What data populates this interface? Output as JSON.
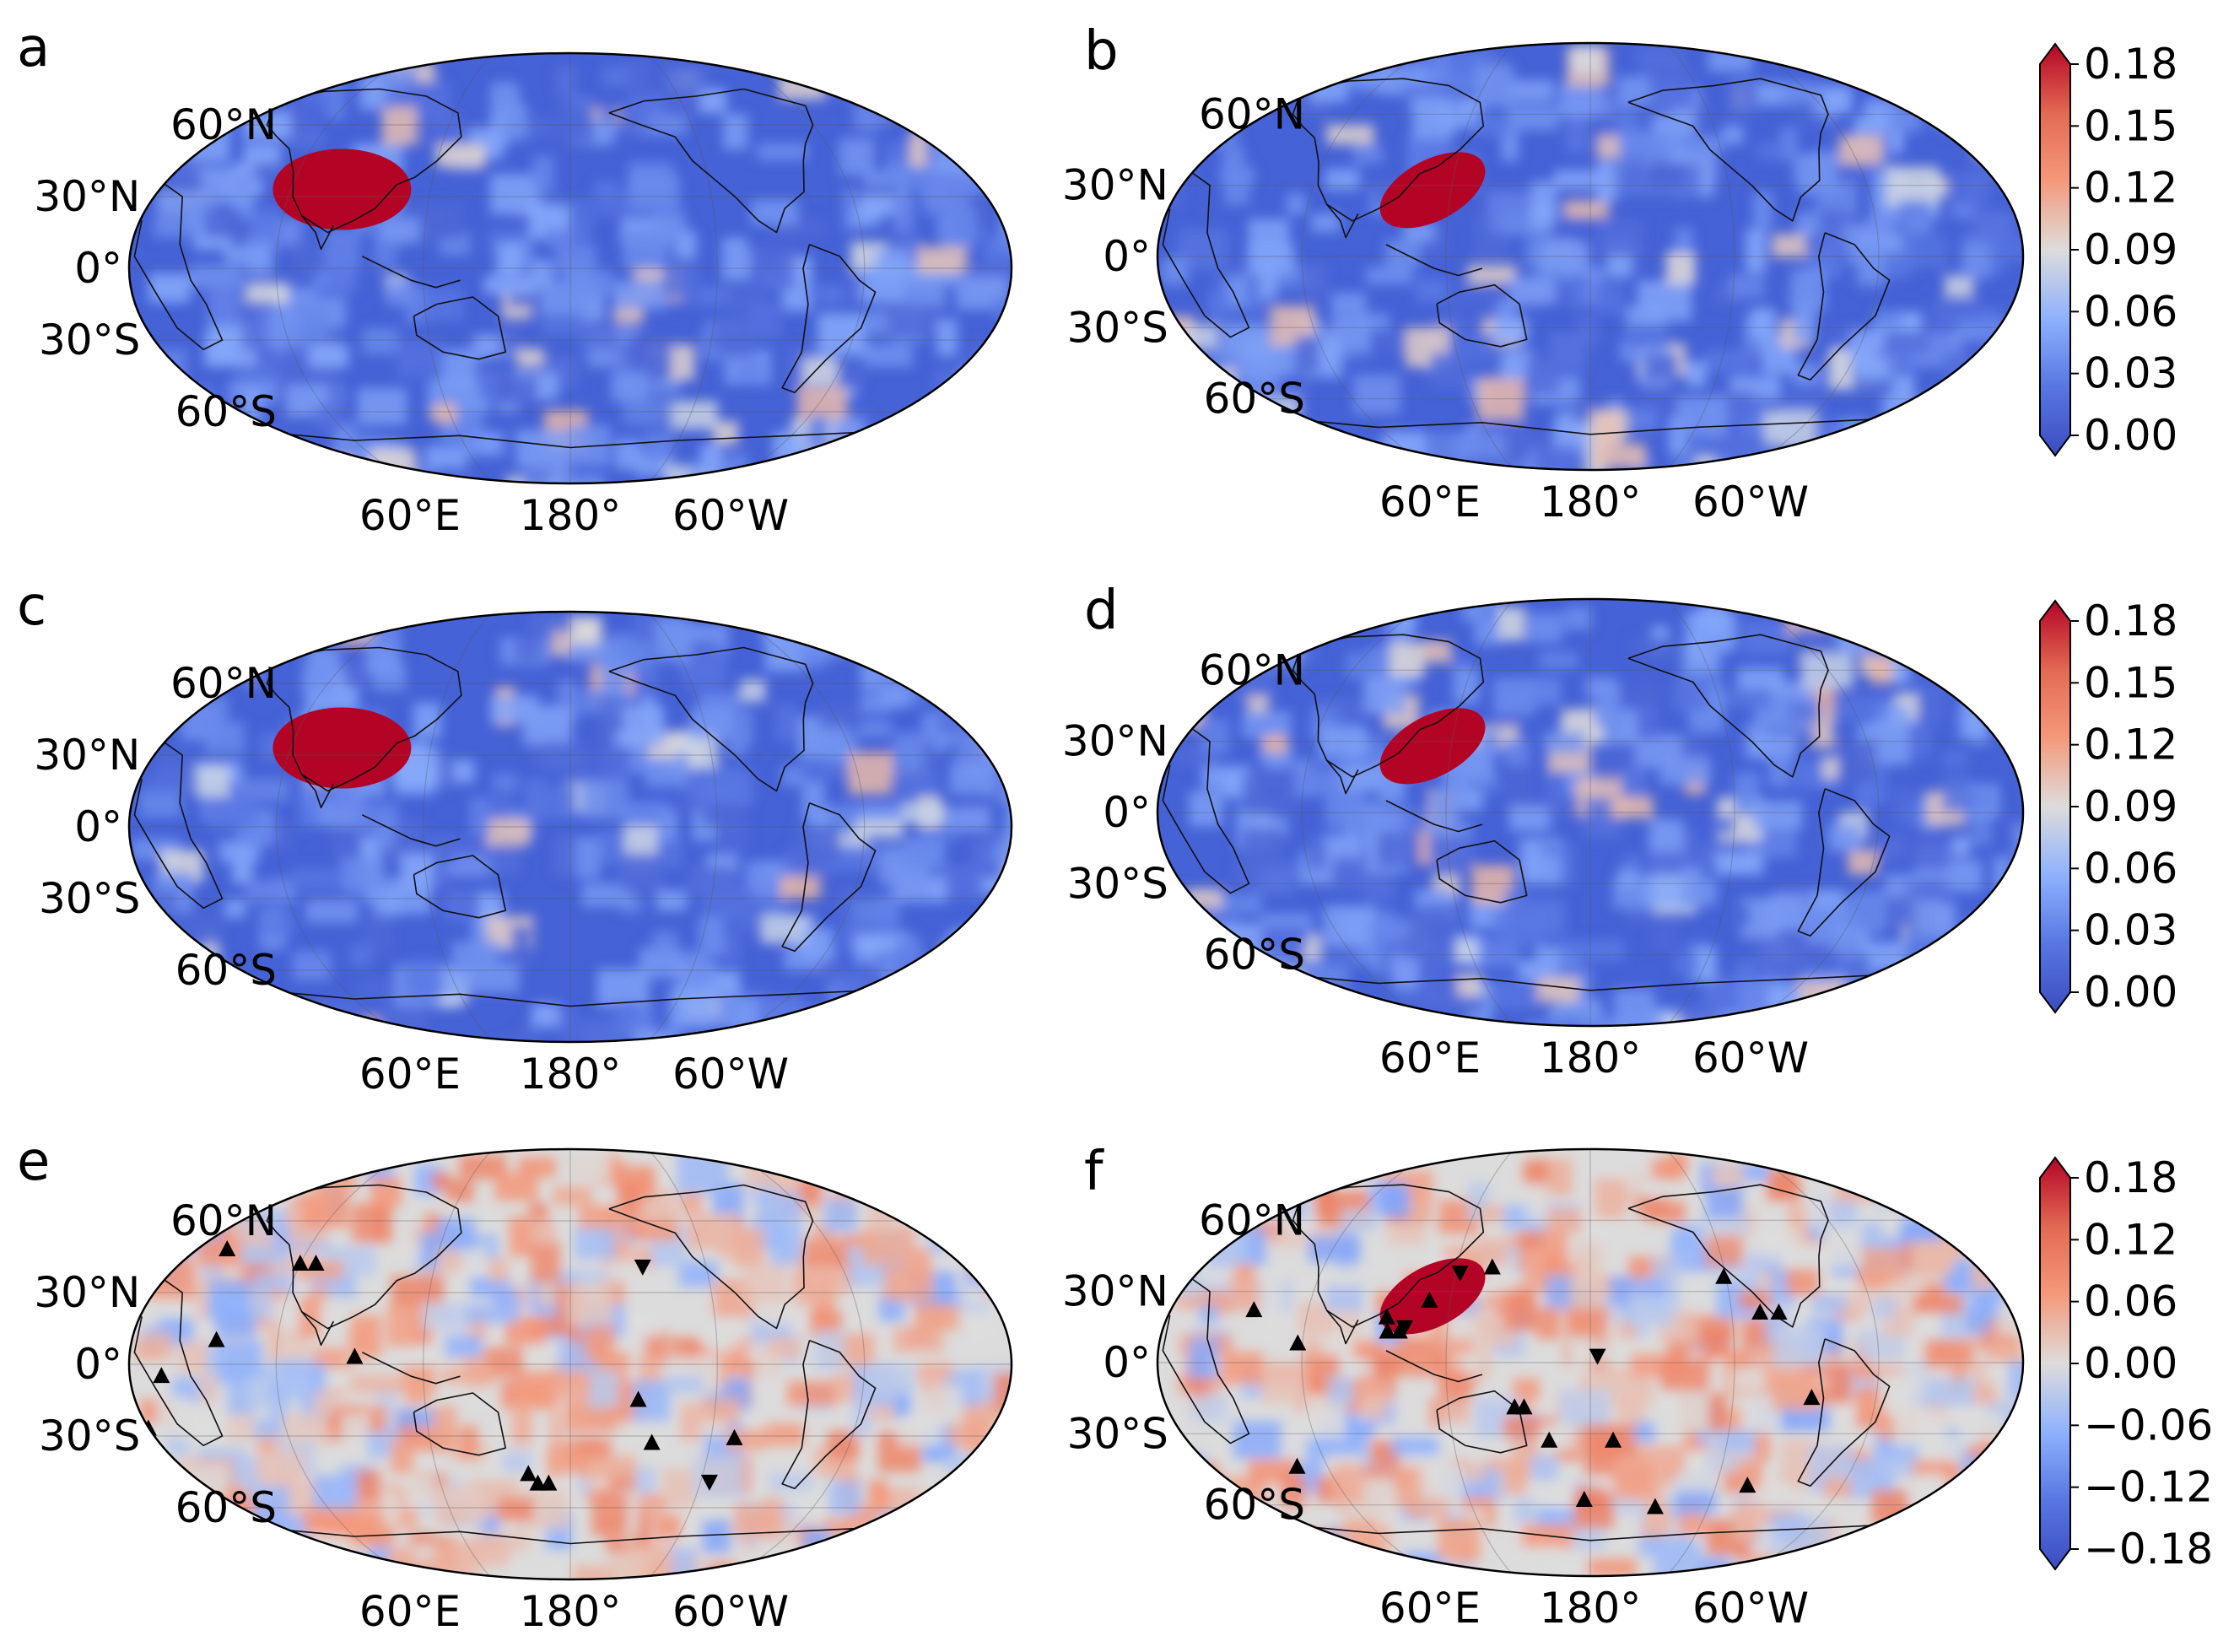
{
  "figure": {
    "panels": [
      {
        "id": "a",
        "kind": "sensitivity",
        "hotspot": "tibet"
      },
      {
        "id": "b",
        "kind": "sensitivity",
        "hotspot": "east-china"
      },
      {
        "id": "c",
        "kind": "sensitivity",
        "hotspot": "tibet"
      },
      {
        "id": "d",
        "kind": "sensitivity",
        "hotspot": "east-china"
      },
      {
        "id": "e",
        "kind": "difference",
        "hotspot": "none"
      },
      {
        "id": "f",
        "kind": "difference",
        "hotspot": "east-china"
      }
    ],
    "lat_labels": [
      "60°N",
      "30°N",
      "0°",
      "30°S",
      "60°S"
    ],
    "lon_labels": [
      "60°E",
      "180°",
      "60°W"
    ],
    "colorbars": [
      {
        "id": "cb1",
        "ticks": [
          "0.18",
          "0.15",
          "0.12",
          "0.09",
          "0.06",
          "0.03",
          "0.00"
        ]
      },
      {
        "id": "cb2",
        "ticks": [
          "0.18",
          "0.15",
          "0.12",
          "0.09",
          "0.06",
          "0.03",
          "0.00"
        ]
      },
      {
        "id": "cb3",
        "ticks": [
          "0.18",
          "0.12",
          "0.06",
          "0.00",
          "−0.06",
          "−0.12",
          "−0.18"
        ]
      }
    ],
    "colors": {
      "low": "#3b4cc0",
      "mid": "#dddddd",
      "high": "#b40426"
    },
    "markers": {
      "e": {
        "up": [
          [
            -157,
            48
          ],
          [
            -120,
            42
          ],
          [
            -113,
            42
          ],
          [
            -145,
            10
          ],
          [
            -88,
            3
          ],
          [
            -167,
            -5
          ],
          [
            -19,
            -46
          ],
          [
            -15,
            -50
          ],
          [
            -10,
            -50
          ],
          [
            28,
            -15
          ],
          [
            35,
            -33
          ],
          [
            70,
            -31
          ],
          [
            -178,
            -27
          ]
        ],
        "down": [
          [
            32,
            41
          ],
          [
            64,
            -49
          ]
        ]
      },
      "f": {
        "up": [
          [
            -143,
            22
          ],
          [
            -122,
            8
          ],
          [
            -86,
            19
          ],
          [
            -85,
            13
          ],
          [
            -80,
            13
          ],
          [
            -69,
            26
          ],
          [
            -44,
            40
          ],
          [
            -32,
            -19
          ],
          [
            -28,
            -19
          ],
          [
            -18,
            -33
          ],
          [
            10,
            -33
          ],
          [
            -3,
            -58
          ],
          [
            59,
            36
          ],
          [
            72,
            21
          ],
          [
            80,
            21
          ],
          [
            93,
            -15
          ],
          [
            33,
            -61
          ],
          [
            -134,
            -44
          ],
          [
            75,
            -52
          ]
        ],
        "down": [
          [
            -78,
            15
          ],
          [
            -58,
            38
          ],
          [
            3,
            3
          ]
        ]
      }
    }
  }
}
